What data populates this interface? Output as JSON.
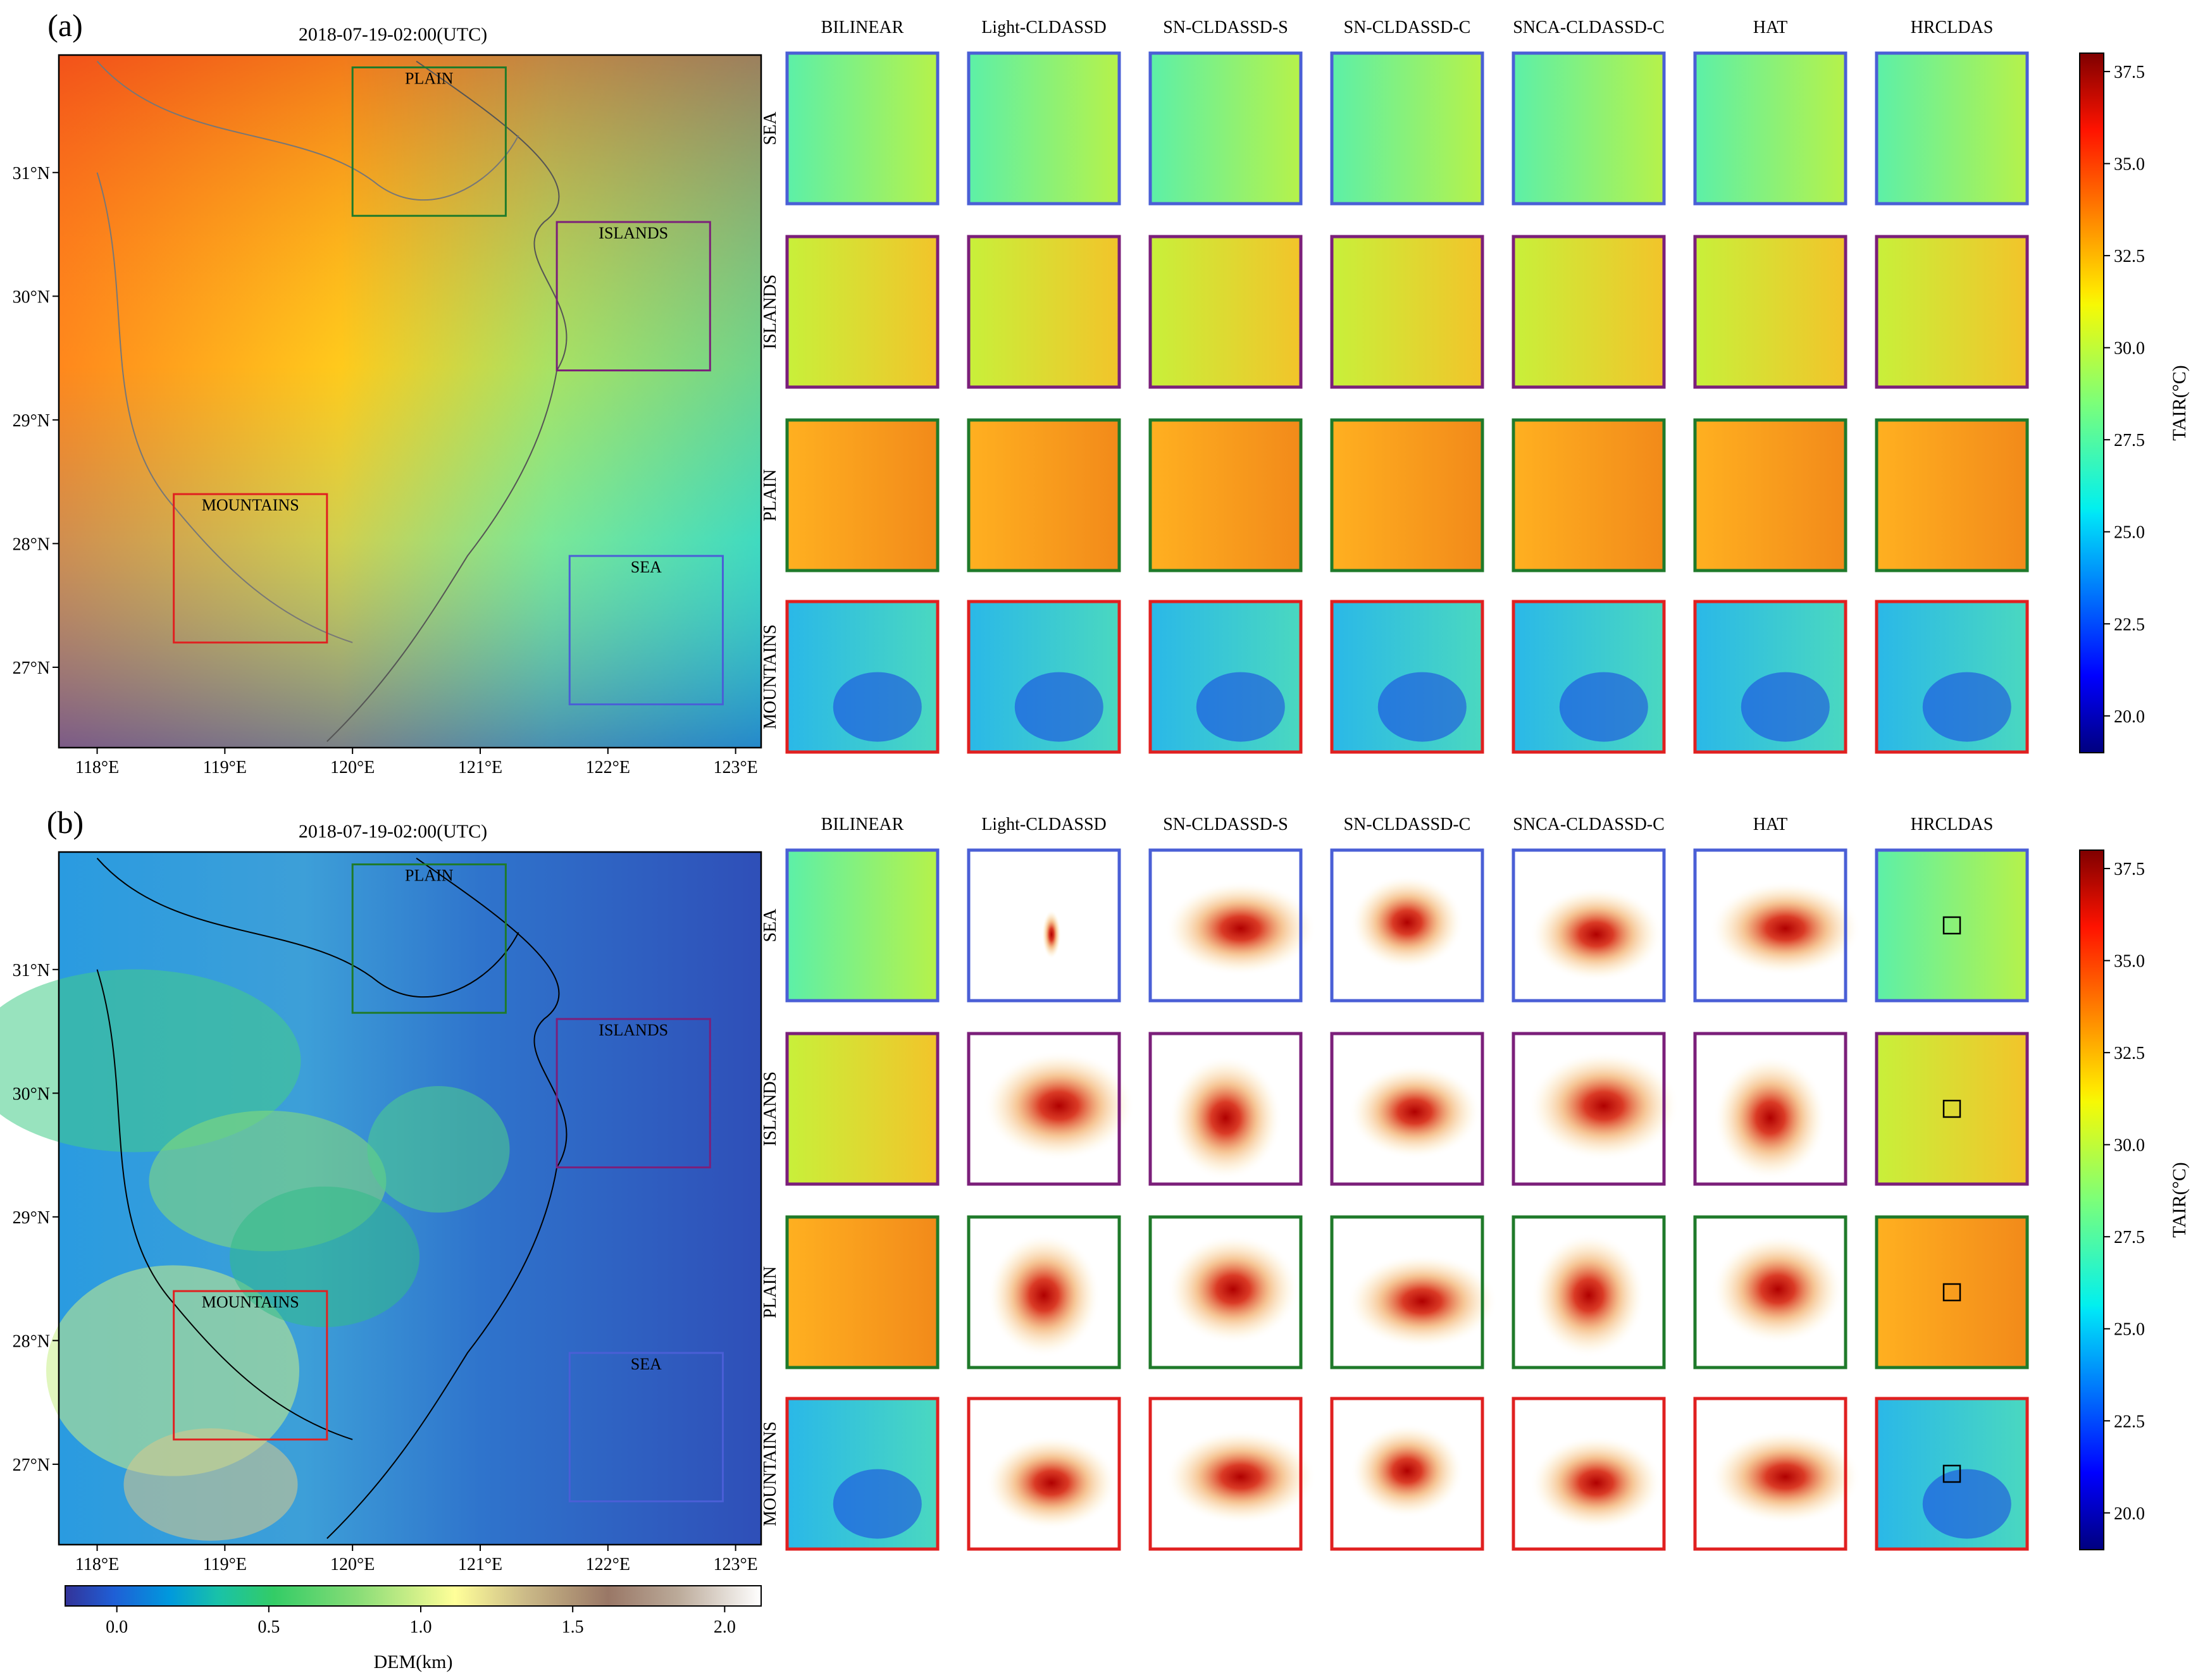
{
  "chart_data": {
    "type": "heatmap",
    "description_panels": [
      {
        "panel_label": "(a)",
        "map_title": "2018-07-19-02:00(UTC)",
        "map_field": "TAIR",
        "x_ticks": [
          "118°E",
          "119°E",
          "120°E",
          "121°E",
          "122°E",
          "123°E"
        ],
        "y_ticks": [
          "31°N",
          "30°N",
          "29°N",
          "28°N",
          "27°N"
        ],
        "x_range": [
          117.7,
          123.2
        ],
        "y_range": [
          26.35,
          31.95
        ],
        "regions": [
          {
            "name": "PLAIN",
            "lon": [
              120.0,
              121.2
            ],
            "lat": [
              30.65,
              31.85
            ],
            "color": "#1f7a2a"
          },
          {
            "name": "ISLANDS",
            "lon": [
              121.6,
              122.8
            ],
            "lat": [
              29.4,
              30.6
            ],
            "color": "#7b1f7a"
          },
          {
            "name": "MOUNTAINS",
            "lon": [
              118.6,
              119.8
            ],
            "lat": [
              27.2,
              28.4
            ],
            "color": "#e02020"
          },
          {
            "name": "SEA",
            "lon": [
              121.7,
              122.9
            ],
            "lat": [
              26.7,
              27.9
            ],
            "color": "#4a5fd6"
          }
        ],
        "methods": [
          "BILINEAR",
          "Light-CLDASSD",
          "SN-CLDASSD-S",
          "SN-CLDASSD-C",
          "SNCA-CLDASSD-C",
          "HAT",
          "HRCLDAS"
        ],
        "rows": [
          "SEA",
          "ISLANDS",
          "PLAIN",
          "MOUNTAINS"
        ],
        "colorbar": {
          "label": "TAIR(°C)",
          "range": [
            19.0,
            38.0
          ],
          "ticks": [
            "20.0",
            "22.5",
            "25.0",
            "27.5",
            "30.0",
            "32.5",
            "35.0",
            "37.5"
          ],
          "tick_values": [
            20.0,
            22.5,
            25.0,
            27.5,
            30.0,
            32.5,
            35.0,
            37.5
          ]
        }
      },
      {
        "panel_label": "(b)",
        "map_title": "2018-07-19-02:00(UTC)",
        "map_field": "DEM",
        "x_ticks": [
          "118°E",
          "119°E",
          "120°E",
          "121°E",
          "122°E",
          "123°E"
        ],
        "y_ticks": [
          "31°N",
          "30°N",
          "29°N",
          "28°N",
          "27°N"
        ],
        "methods": [
          "BILINEAR",
          "Light-CLDASSD",
          "SN-CLDASSD-S",
          "SN-CLDASSD-C",
          "SNCA-CLDASSD-C",
          "HAT",
          "HRCLDAS"
        ],
        "rows": [
          "SEA",
          "ISLANDS",
          "PLAIN",
          "MOUNTAINS"
        ],
        "colorbar": {
          "label": "TAIR(°C)",
          "range": [
            19.0,
            38.0
          ],
          "ticks": [
            "20.0",
            "22.5",
            "25.0",
            "27.5",
            "30.0",
            "32.5",
            "35.0",
            "37.5"
          ],
          "tick_values": [
            20.0,
            22.5,
            25.0,
            27.5,
            30.0,
            32.5,
            35.0,
            37.5
          ]
        },
        "dem_colorbar": {
          "label": "DEM(km)",
          "range": [
            -0.17,
            2.12
          ],
          "ticks": [
            "0.0",
            "0.5",
            "1.0",
            "1.5",
            "2.0"
          ],
          "tick_values": [
            0.0,
            0.5,
            1.0,
            1.5,
            2.0
          ]
        }
      }
    ]
  },
  "colors": {
    "sea_box": "#4a5fd6",
    "islands_box": "#7b1f7a",
    "plain_box": "#1f7a2a",
    "mountains_box": "#e02020"
  }
}
